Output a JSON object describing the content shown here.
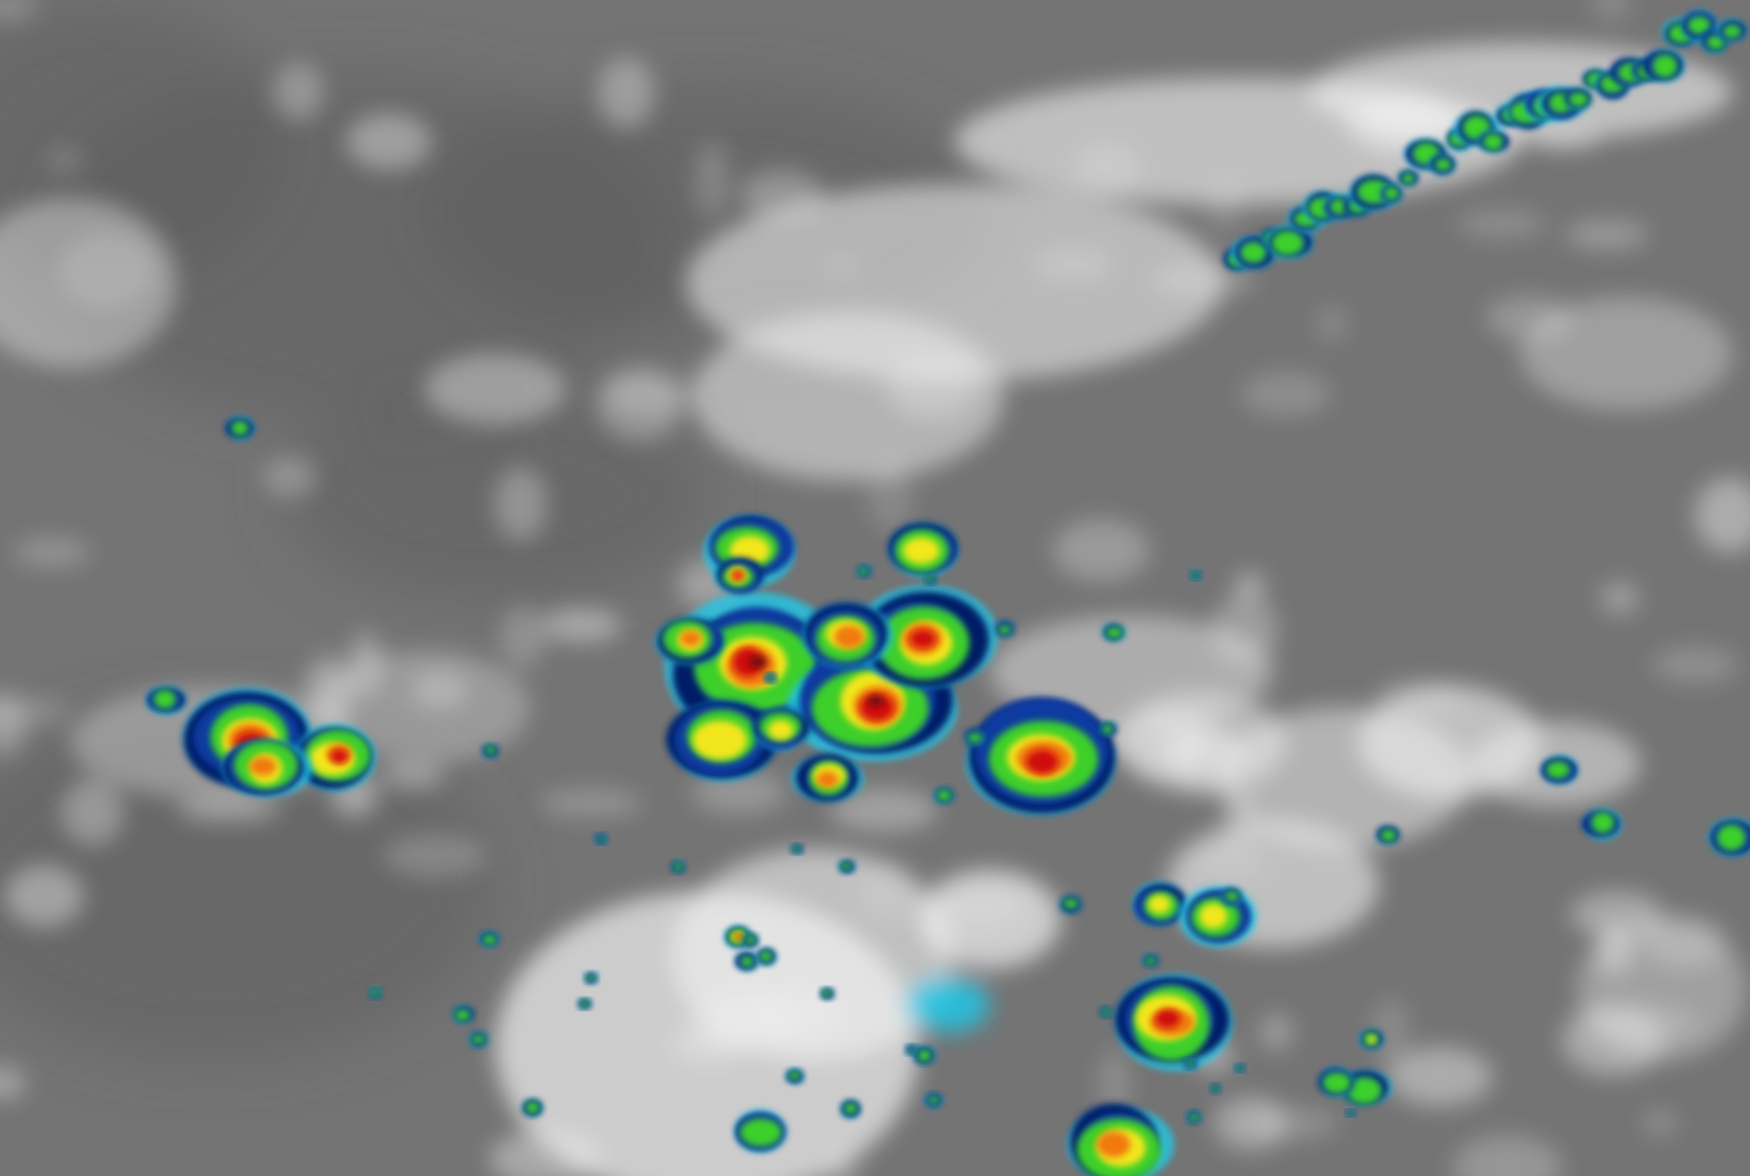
{
  "palette": {
    "background_gray": "#747474",
    "dark_gray": "#5f5f5f",
    "cloud_white": "#f2f2f2",
    "cold_cyan": "#22c8e8",
    "cold_blue": "#0a3aa0",
    "navy": "#001a66",
    "green": "#3ccf2a",
    "yellow": "#f2e61a",
    "orange": "#f07a10",
    "red": "#d01010",
    "dark_red": "#701010"
  }
}
